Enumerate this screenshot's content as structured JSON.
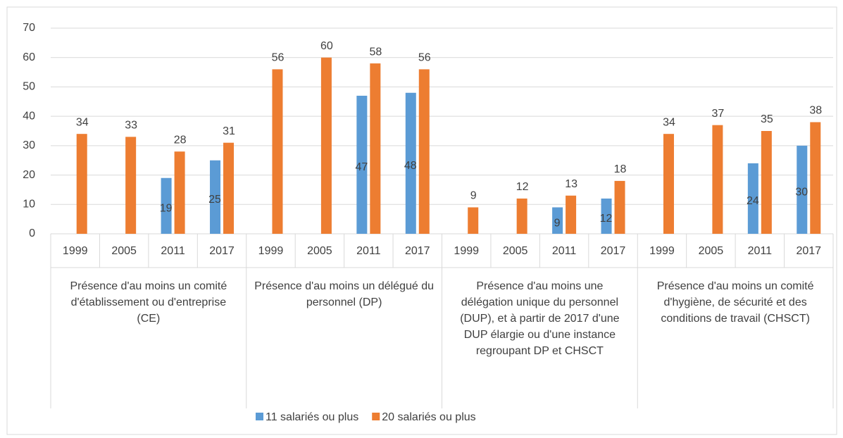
{
  "chart_data": {
    "type": "bar",
    "groups": [
      "Présence d'au moins un comité d'établissement ou d'entreprise (CE)",
      "Présence d'au moins un délégué du personnel (DP)",
      "Présence d'au moins une délégation unique du personnel (DUP), et à partir de 2017 d'une DUP élargie ou d'une instance regroupant DP et CHSCT",
      "Présence d'au moins un comité d'hygiène, de sécurité et des conditions de travail (CHSCT)"
    ],
    "categories": [
      "1999",
      "2005",
      "2011",
      "2017",
      "1999",
      "2005",
      "2011",
      "2017",
      "1999",
      "2005",
      "2011",
      "2017",
      "1999",
      "2005",
      "2011",
      "2017"
    ],
    "series": [
      {
        "name": "11 salariés ou plus",
        "color": "#5b9bd5",
        "values": [
          null,
          null,
          19,
          25,
          null,
          null,
          47,
          48,
          null,
          null,
          9,
          12,
          null,
          null,
          24,
          30
        ]
      },
      {
        "name": "20 salariés ou plus",
        "color": "#ed7d31",
        "values": [
          34,
          33,
          28,
          31,
          56,
          60,
          58,
          56,
          9,
          12,
          13,
          18,
          34,
          37,
          35,
          38
        ]
      }
    ],
    "ylim": [
      0,
      70
    ],
    "yticks": [
      0,
      10,
      20,
      30,
      40,
      50,
      60,
      70
    ],
    "grid": true,
    "legend": "bottom"
  }
}
